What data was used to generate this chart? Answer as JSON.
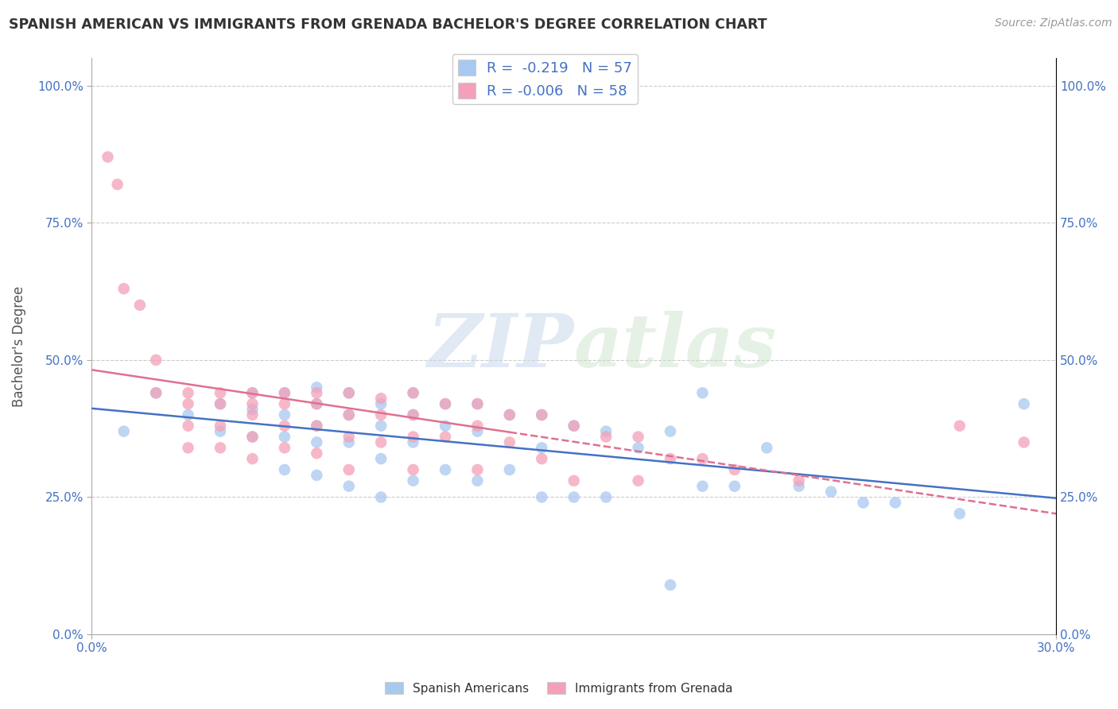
{
  "title": "SPANISH AMERICAN VS IMMIGRANTS FROM GRENADA BACHELOR'S DEGREE CORRELATION CHART",
  "source_text": "Source: ZipAtlas.com",
  "ylabel": "Bachelor's Degree",
  "xlim": [
    0.0,
    0.3
  ],
  "ylim": [
    0.0,
    1.05
  ],
  "xtick_labels": [
    "0.0%",
    "30.0%"
  ],
  "ytick_labels": [
    "0.0%",
    "25.0%",
    "50.0%",
    "75.0%",
    "100.0%"
  ],
  "ytick_values": [
    0.0,
    0.25,
    0.5,
    0.75,
    1.0
  ],
  "xtick_values": [
    0.0,
    0.3
  ],
  "legend_label1": "Spanish Americans",
  "legend_label2": "Immigrants from Grenada",
  "R1": -0.219,
  "N1": 57,
  "R2": -0.006,
  "N2": 58,
  "color_blue": "#A8C8F0",
  "color_pink": "#F4A0B8",
  "line_color_blue": "#4472C4",
  "line_color_pink": "#E07090",
  "watermark_zip": "ZIP",
  "watermark_atlas": "atlas",
  "background_color": "#FFFFFF",
  "grid_color": "#CCCCCC",
  "blue_scatter_x": [
    0.01,
    0.02,
    0.03,
    0.04,
    0.04,
    0.05,
    0.05,
    0.05,
    0.06,
    0.06,
    0.06,
    0.06,
    0.07,
    0.07,
    0.07,
    0.07,
    0.07,
    0.08,
    0.08,
    0.08,
    0.08,
    0.09,
    0.09,
    0.09,
    0.09,
    0.1,
    0.1,
    0.1,
    0.1,
    0.11,
    0.11,
    0.11,
    0.12,
    0.12,
    0.12,
    0.13,
    0.13,
    0.14,
    0.14,
    0.14,
    0.15,
    0.15,
    0.16,
    0.16,
    0.17,
    0.18,
    0.18,
    0.19,
    0.19,
    0.2,
    0.21,
    0.22,
    0.23,
    0.24,
    0.25,
    0.27,
    0.29
  ],
  "blue_scatter_y": [
    0.37,
    0.44,
    0.4,
    0.42,
    0.37,
    0.44,
    0.41,
    0.36,
    0.44,
    0.4,
    0.36,
    0.3,
    0.45,
    0.42,
    0.38,
    0.35,
    0.29,
    0.44,
    0.4,
    0.35,
    0.27,
    0.42,
    0.38,
    0.32,
    0.25,
    0.44,
    0.4,
    0.35,
    0.28,
    0.42,
    0.38,
    0.3,
    0.42,
    0.37,
    0.28,
    0.4,
    0.3,
    0.4,
    0.34,
    0.25,
    0.38,
    0.25,
    0.37,
    0.25,
    0.34,
    0.37,
    0.09,
    0.44,
    0.27,
    0.27,
    0.34,
    0.27,
    0.26,
    0.24,
    0.24,
    0.22,
    0.42
  ],
  "pink_scatter_x": [
    0.005,
    0.008,
    0.01,
    0.015,
    0.02,
    0.02,
    0.03,
    0.03,
    0.03,
    0.03,
    0.04,
    0.04,
    0.04,
    0.04,
    0.05,
    0.05,
    0.05,
    0.05,
    0.05,
    0.06,
    0.06,
    0.06,
    0.06,
    0.07,
    0.07,
    0.07,
    0.07,
    0.08,
    0.08,
    0.08,
    0.08,
    0.09,
    0.09,
    0.09,
    0.1,
    0.1,
    0.1,
    0.1,
    0.11,
    0.11,
    0.12,
    0.12,
    0.12,
    0.13,
    0.13,
    0.14,
    0.14,
    0.15,
    0.15,
    0.16,
    0.17,
    0.17,
    0.18,
    0.19,
    0.2,
    0.22,
    0.27,
    0.29
  ],
  "pink_scatter_y": [
    0.87,
    0.82,
    0.63,
    0.6,
    0.5,
    0.44,
    0.44,
    0.42,
    0.38,
    0.34,
    0.44,
    0.42,
    0.38,
    0.34,
    0.44,
    0.42,
    0.4,
    0.36,
    0.32,
    0.44,
    0.42,
    0.38,
    0.34,
    0.44,
    0.42,
    0.38,
    0.33,
    0.44,
    0.4,
    0.36,
    0.3,
    0.43,
    0.4,
    0.35,
    0.44,
    0.4,
    0.36,
    0.3,
    0.42,
    0.36,
    0.42,
    0.38,
    0.3,
    0.4,
    0.35,
    0.4,
    0.32,
    0.38,
    0.28,
    0.36,
    0.36,
    0.28,
    0.32,
    0.32,
    0.3,
    0.28,
    0.38,
    0.35
  ],
  "pink_line_solid_xlim": [
    0.0,
    0.13
  ],
  "pink_line_dash_xlim": [
    0.13,
    0.3
  ],
  "blue_line_y_start": 0.305,
  "blue_line_y_end": 0.175
}
